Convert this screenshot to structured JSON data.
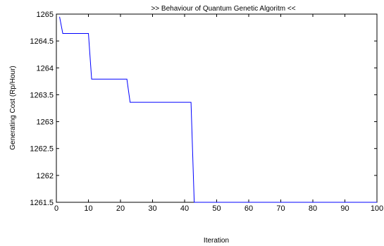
{
  "chart_data": {
    "type": "line",
    "title": ">> Behaviour of Quantum Genetic Algoritm <<",
    "xlabel": "Iteration",
    "ylabel": "Generating Cost (Rp/Hour)",
    "xlim": [
      0,
      100
    ],
    "ylim": [
      1261.5,
      1265
    ],
    "xticks": [
      0,
      10,
      20,
      30,
      40,
      50,
      60,
      70,
      80,
      90,
      100
    ],
    "yticks": [
      1261.5,
      1262,
      1262.5,
      1263,
      1263.5,
      1264,
      1264.5,
      1265
    ],
    "xtick_labels": [
      "0",
      "10",
      "20",
      "30",
      "40",
      "50",
      "60",
      "70",
      "80",
      "90",
      "100"
    ],
    "ytick_labels": [
      "1261.5",
      "1262",
      "1262.5",
      "1263",
      "1263.5",
      "1264",
      "1264.5",
      "1265"
    ],
    "grid": false,
    "legend": "none",
    "series": [
      {
        "color": "#0000ff",
        "x": [
          1,
          2,
          10,
          11,
          22,
          23,
          42,
          43,
          100
        ],
        "y": [
          1264.95,
          1264.64,
          1264.64,
          1263.79,
          1263.79,
          1263.36,
          1263.36,
          1261.5,
          1261.5
        ]
      }
    ]
  }
}
